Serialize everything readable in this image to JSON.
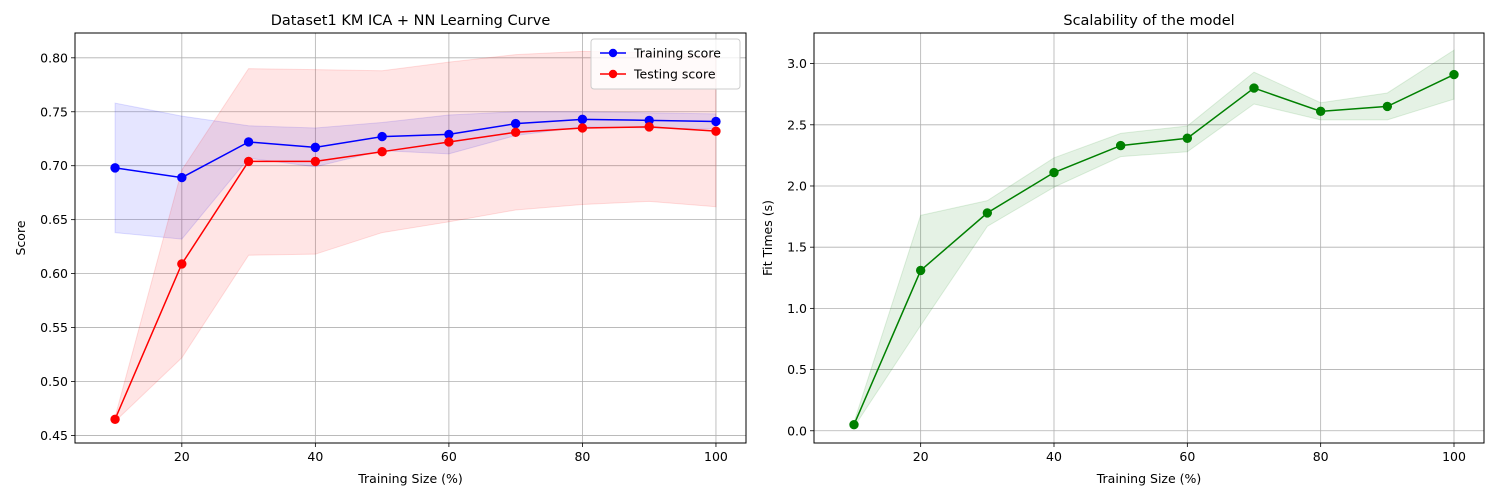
{
  "chart_data": [
    {
      "type": "line",
      "title": "Dataset1 KM ICA + NN Learning Curve",
      "xlabel": "Training Size (%)",
      "ylabel": "Score",
      "x": [
        10,
        20,
        30,
        40,
        50,
        60,
        70,
        80,
        90,
        100
      ],
      "xlim": [
        4,
        104.5
      ],
      "ylim": [
        0.443,
        0.823
      ],
      "xticks": [
        20,
        40,
        60,
        80,
        100
      ],
      "yticks": [
        0.45,
        0.5,
        0.55,
        0.6,
        0.65,
        0.7,
        0.75,
        0.8
      ],
      "grid": true,
      "legend_position": "top-right",
      "series": [
        {
          "name": "Training score",
          "color": "#0000ff",
          "values": [
            0.698,
            0.689,
            0.722,
            0.717,
            0.727,
            0.729,
            0.739,
            0.743,
            0.742,
            0.741
          ],
          "band_lower": [
            0.638,
            0.632,
            0.707,
            0.699,
            0.714,
            0.711,
            0.728,
            0.736,
            0.735,
            0.734
          ],
          "band_upper": [
            0.758,
            0.746,
            0.737,
            0.735,
            0.74,
            0.747,
            0.75,
            0.75,
            0.749,
            0.748
          ]
        },
        {
          "name": "Testing score",
          "color": "#ff0000",
          "values": [
            0.465,
            0.609,
            0.704,
            0.704,
            0.713,
            0.722,
            0.731,
            0.735,
            0.736,
            0.732
          ],
          "band_lower": [
            0.463,
            0.522,
            0.617,
            0.618,
            0.638,
            0.648,
            0.659,
            0.664,
            0.667,
            0.662
          ],
          "band_upper": [
            0.467,
            0.696,
            0.79,
            0.789,
            0.788,
            0.796,
            0.803,
            0.806,
            0.805,
            0.802
          ]
        }
      ]
    },
    {
      "type": "line",
      "title": "Scalability of the model",
      "xlabel": "Training Size (%)",
      "ylabel": "Fit Times (s)",
      "x": [
        10,
        20,
        30,
        40,
        50,
        60,
        70,
        80,
        90,
        100
      ],
      "xlim": [
        4,
        104.5
      ],
      "ylim": [
        -0.1,
        3.25
      ],
      "xticks": [
        20,
        40,
        60,
        80,
        100
      ],
      "yticks": [
        0.0,
        0.5,
        1.0,
        1.5,
        2.0,
        2.5,
        3.0
      ],
      "ytick_labels": [
        "0.0",
        "0.5",
        "1.0",
        "1.5",
        "2.0",
        "2.5",
        "3.0"
      ],
      "grid": true,
      "series": [
        {
          "color": "#008000",
          "values": [
            0.05,
            1.31,
            1.78,
            2.11,
            2.33,
            2.39,
            2.8,
            2.61,
            2.65,
            2.91
          ],
          "band_lower": [
            0.03,
            0.86,
            1.67,
            1.99,
            2.24,
            2.28,
            2.67,
            2.54,
            2.54,
            2.71
          ],
          "band_upper": [
            0.07,
            1.76,
            1.88,
            2.23,
            2.43,
            2.49,
            2.93,
            2.68,
            2.76,
            3.11
          ]
        }
      ]
    }
  ]
}
